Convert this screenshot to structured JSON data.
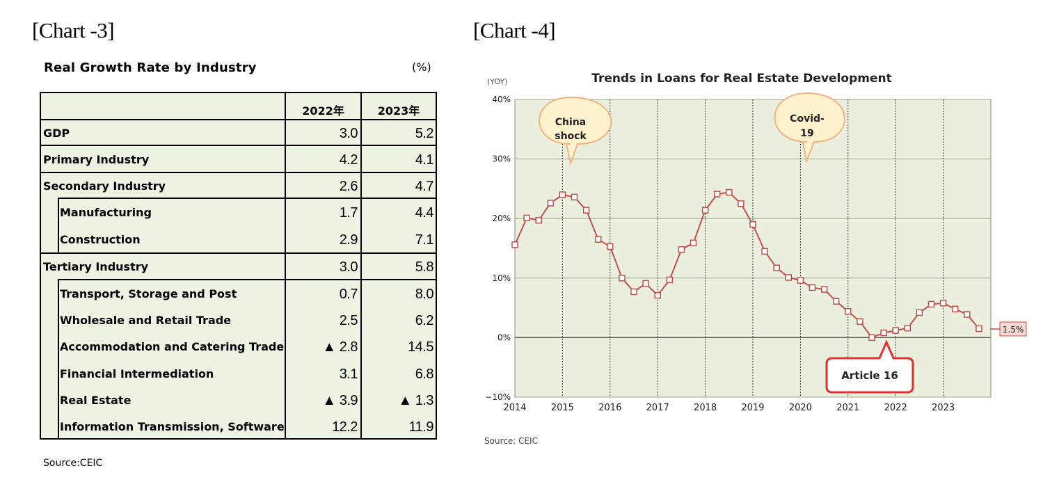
{
  "headings": {
    "left": "[Chart -3]",
    "right": "[Chart -4]"
  },
  "table": {
    "title": "Real Growth Rate by Industry",
    "unit": "(%)",
    "columns": [
      "2022年",
      "2023年"
    ],
    "rows": [
      {
        "label": "GDP",
        "v2022": "3.0",
        "v2023": "5.2"
      },
      {
        "label": "Primary Industry",
        "v2022": "4.2",
        "v2023": "4.1"
      },
      {
        "label": "Secondary Industry",
        "v2022": "2.6",
        "v2023": "4.7"
      },
      {
        "label": "Manufacturing",
        "v2022": "1.7",
        "v2023": "4.4"
      },
      {
        "label": "Construction",
        "v2022": "2.9",
        "v2023": "7.1"
      },
      {
        "label": "Tertiary Industry",
        "v2022": "3.0",
        "v2023": "5.8"
      },
      {
        "label": "Transport, Storage and Post",
        "v2022": "0.7",
        "v2023": "8.0"
      },
      {
        "label": "Wholesale and Retail Trade",
        "v2022": "2.5",
        "v2023": "6.2"
      },
      {
        "label": "Accommodation and Catering Trade",
        "v2022": "▲ 2.8",
        "v2023": "14.5"
      },
      {
        "label": "Financial Intermediation",
        "v2022": "3.1",
        "v2023": "6.8"
      },
      {
        "label": "Real Estate",
        "v2022": "▲ 3.9",
        "v2023": "▲ 1.3"
      },
      {
        "label": "Information Transmission, Software",
        "v2022": "12.2",
        "v2023": "11.9"
      }
    ],
    "source": "Source:CEIC"
  },
  "chart_data": {
    "type": "line",
    "title": "Trends in Loans for Real Estate Development",
    "ylabel": "(YOY)",
    "ylim": [
      -10,
      40
    ],
    "yticks": [
      "40%",
      "30%",
      "20%",
      "10%",
      "0%",
      "−10%"
    ],
    "xlim": [
      2014,
      2024
    ],
    "xticks": [
      "2014",
      "2015",
      "2016",
      "2017",
      "2018",
      "2019",
      "2020",
      "2021",
      "2022",
      "2023"
    ],
    "series": [
      {
        "name": "Loans for Real Estate Development (YoY)",
        "color": "#c0504d",
        "x": [
          2014.0,
          2014.25,
          2014.5,
          2014.75,
          2015.0,
          2015.25,
          2015.5,
          2015.75,
          2016.0,
          2016.25,
          2016.5,
          2016.75,
          2017.0,
          2017.25,
          2017.5,
          2017.75,
          2018.0,
          2018.25,
          2018.5,
          2018.75,
          2019.0,
          2019.25,
          2019.5,
          2019.75,
          2020.0,
          2020.25,
          2020.5,
          2020.75,
          2021.0,
          2021.25,
          2021.5,
          2021.75,
          2022.0,
          2022.25,
          2022.5,
          2022.75,
          2023.0,
          2023.25,
          2023.5,
          2023.75
        ],
        "values": [
          15.6,
          20.1,
          19.7,
          22.6,
          24.0,
          23.6,
          21.4,
          16.5,
          15.3,
          10.0,
          7.7,
          9.1,
          7.1,
          9.7,
          14.8,
          15.9,
          21.4,
          24.1,
          24.4,
          22.5,
          19.0,
          14.5,
          11.7,
          10.1,
          9.6,
          8.4,
          8.1,
          6.1,
          4.4,
          2.7,
          0.0,
          0.8,
          1.2,
          1.6,
          4.2,
          5.6,
          5.8,
          4.8,
          3.9,
          1.5
        ]
      }
    ],
    "annotations": [
      {
        "text_lines": [
          "China",
          "shock"
        ],
        "style": "yellow-callout"
      },
      {
        "text_lines": [
          "Covid-",
          "19"
        ],
        "style": "yellow-callout"
      },
      {
        "text": "Article 16",
        "style": "red-callout"
      },
      {
        "text": "1.5%",
        "style": "end-label"
      }
    ],
    "colors": {
      "plot_bg": "#ebf0de",
      "line": "#c0504d",
      "callout_fill": "#fff2cc",
      "callout_stroke": "#f4b183",
      "red_callout_stroke": "#e03030"
    },
    "source": "Source: CEIC"
  }
}
